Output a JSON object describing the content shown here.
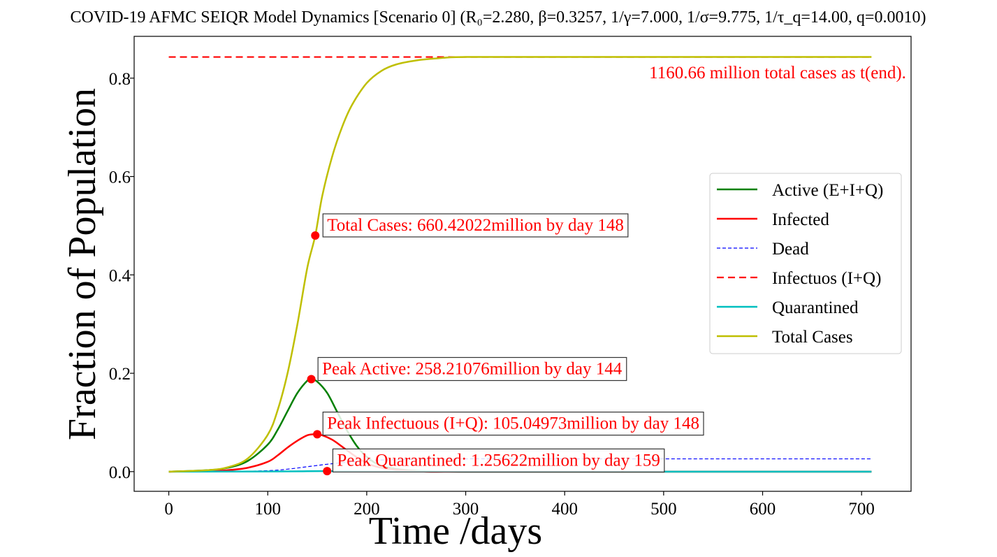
{
  "chart_data": {
    "type": "line",
    "title": "COVID-19 AFMC SEIQR Model Dynamics [Scenario 0] (R₀=2.280, β=0.3257, 1/γ=7.000, 1/σ=9.775, 1/τ_q=14.00, q=0.0010)",
    "xlabel": "Time /days",
    "ylabel": "Fraction of Population",
    "xlim": [
      -35,
      750
    ],
    "ylim": [
      -0.04,
      0.885
    ],
    "xticks": [
      0,
      100,
      200,
      300,
      400,
      500,
      600,
      700
    ],
    "yticks": [
      0.0,
      0.2,
      0.4,
      0.6,
      0.8
    ],
    "xtick_labels": [
      "0",
      "100",
      "200",
      "300",
      "400",
      "500",
      "600",
      "700"
    ],
    "ytick_labels": [
      "0.0",
      "0.2",
      "0.4",
      "0.6",
      "0.8"
    ],
    "grid": false,
    "legend_position": "center-right",
    "series": [
      {
        "name": "Active (E+I+Q)",
        "color": "#008000",
        "style": "solid",
        "x": [
          0,
          40,
          60,
          80,
          100,
          110,
          120,
          130,
          140,
          144,
          150,
          160,
          170,
          180,
          190,
          200,
          210,
          220,
          240,
          260,
          300,
          400,
          500,
          600,
          710
        ],
        "y": [
          0.0,
          0.003,
          0.008,
          0.022,
          0.055,
          0.085,
          0.123,
          0.16,
          0.185,
          0.188,
          0.183,
          0.16,
          0.122,
          0.084,
          0.052,
          0.03,
          0.016,
          0.009,
          0.003,
          0.001,
          0.0,
          0.0,
          0.0,
          0.0,
          0.0
        ]
      },
      {
        "name": "Infected",
        "color": "#ff0000",
        "style": "solid",
        "x": [
          0,
          40,
          60,
          80,
          100,
          110,
          120,
          130,
          140,
          148,
          155,
          165,
          175,
          185,
          195,
          205,
          220,
          240,
          260,
          300,
          400,
          500,
          600,
          710
        ],
        "y": [
          0.0,
          0.001,
          0.003,
          0.008,
          0.02,
          0.033,
          0.049,
          0.063,
          0.074,
          0.076,
          0.074,
          0.065,
          0.051,
          0.036,
          0.023,
          0.013,
          0.006,
          0.002,
          0.0,
          0.0,
          0.0,
          0.0,
          0.0,
          0.0
        ]
      },
      {
        "name": "Dead",
        "color": "#0000ff",
        "style": "dashed-thin",
        "x": [
          0,
          60,
          100,
          120,
          140,
          160,
          180,
          200,
          220,
          250,
          300,
          400,
          500,
          600,
          710
        ],
        "y": [
          0.0,
          0.0003,
          0.002,
          0.005,
          0.01,
          0.015,
          0.019,
          0.022,
          0.024,
          0.025,
          0.026,
          0.026,
          0.026,
          0.026,
          0.026
        ]
      },
      {
        "name": "Infectuos (I+Q)",
        "color": "#ff0000",
        "style": "dashed",
        "x": [
          0,
          710
        ],
        "y": [
          0.843,
          0.843
        ]
      },
      {
        "name": "Quarantined",
        "color": "#00bfbf",
        "style": "solid",
        "x": [
          0,
          100,
          140,
          159,
          180,
          220,
          300,
          400,
          500,
          600,
          710
        ],
        "y": [
          0.0,
          0.0003,
          0.0008,
          0.001,
          0.0008,
          0.0003,
          0.0,
          0.0,
          0.0,
          0.0,
          0.0
        ]
      },
      {
        "name": "Total Cases",
        "color": "#bfbf00",
        "style": "solid",
        "x": [
          0,
          40,
          60,
          80,
          100,
          110,
          120,
          130,
          140,
          148,
          155,
          165,
          175,
          185,
          200,
          215,
          230,
          250,
          270,
          300,
          400,
          500,
          600,
          710
        ],
        "y": [
          0.0,
          0.003,
          0.009,
          0.027,
          0.075,
          0.125,
          0.2,
          0.3,
          0.415,
          0.48,
          0.56,
          0.64,
          0.7,
          0.745,
          0.79,
          0.815,
          0.828,
          0.836,
          0.84,
          0.843,
          0.843,
          0.843,
          0.843,
          0.843
        ]
      }
    ],
    "markers": [
      {
        "x": 148,
        "y": 0.48,
        "color": "#ff0000"
      },
      {
        "x": 144,
        "y": 0.188,
        "color": "#ff0000"
      },
      {
        "x": 150,
        "y": 0.076,
        "color": "#ff0000"
      },
      {
        "x": 160,
        "y": 0.001,
        "color": "#ff0000"
      }
    ],
    "annotations": [
      {
        "text": "Total Cases: 660.42022million by day 148",
        "x": 160,
        "y": 0.49,
        "boxed": true
      },
      {
        "text": "Peak Active: 258.21076million by day 144",
        "x": 155,
        "y": 0.198,
        "boxed": true
      },
      {
        "text": "Peak Infectuous (I+Q): 105.04973million by day 148",
        "x": 160,
        "y": 0.087,
        "boxed": true
      },
      {
        "text": "Peak Quarantined: 1.25622million by day 159",
        "x": 170,
        "y": 0.012,
        "boxed": true
      },
      {
        "text": "1160.66 million total cases as t(end).",
        "x": 745,
        "y": 0.8,
        "boxed": false,
        "anchor": "end"
      }
    ]
  }
}
